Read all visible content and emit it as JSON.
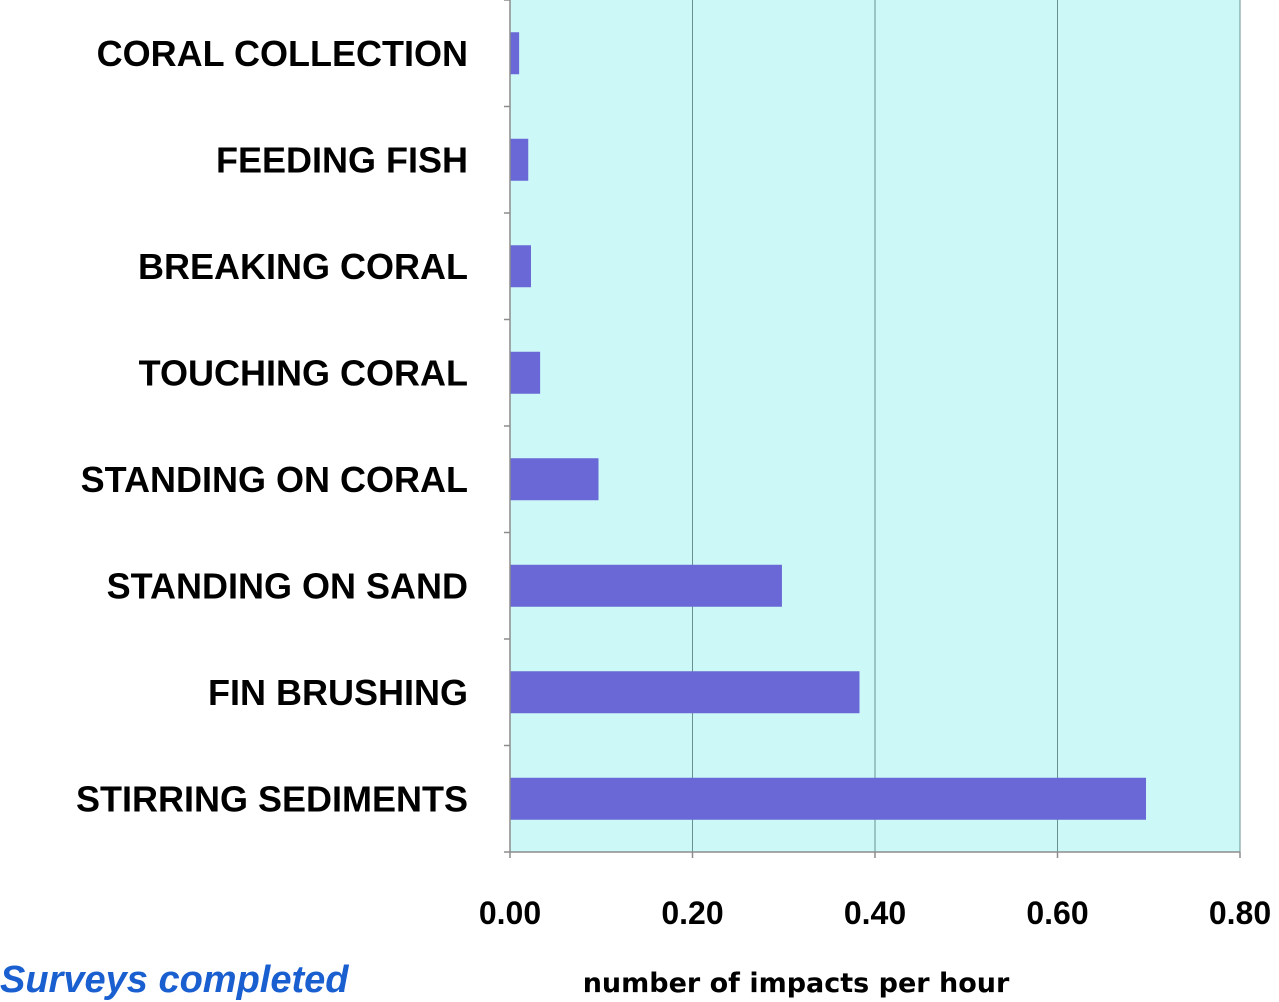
{
  "chart_data": {
    "type": "bar",
    "orientation": "horizontal",
    "categories": [
      "CORAL COLLECTION",
      "FEEDING FISH",
      "BREAKING CORAL",
      "TOUCHING CORAL",
      "STANDING ON CORAL",
      "STANDING ON SAND",
      "FIN BRUSHING",
      "STIRRING SEDIMENTS"
    ],
    "values": [
      0.01,
      0.02,
      0.023,
      0.033,
      0.097,
      0.298,
      0.383,
      0.697
    ],
    "xlabel": "number of impacts per hour",
    "ylabel": "",
    "xlim": [
      0,
      0.8
    ],
    "xticks": [
      "0.00",
      "0.20",
      "0.40",
      "0.60",
      "0.80"
    ],
    "grid": "vertical",
    "legend": "none",
    "colors": {
      "plot_background": "#ccf8f8",
      "bar": "#6a68d6",
      "gridline": "#6a8f8f",
      "axis": "#8c8c8c"
    }
  },
  "footer": {
    "text": "Surveys completed",
    "color": "#1a5fd0"
  }
}
